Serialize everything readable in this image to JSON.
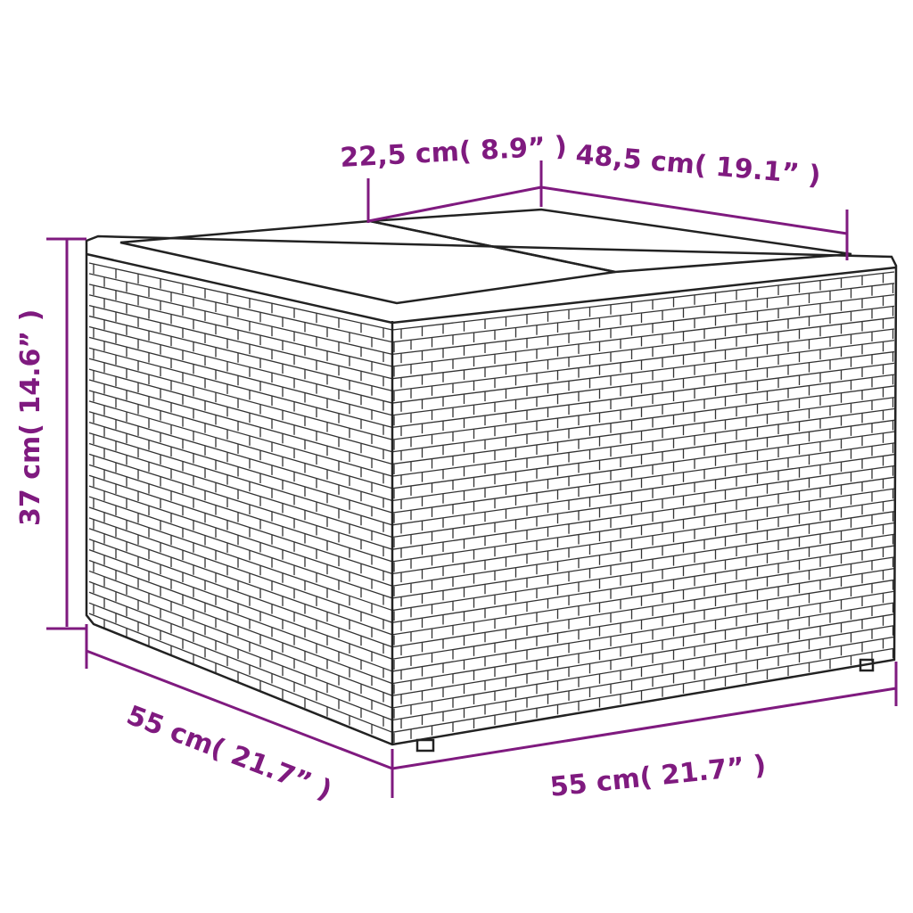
{
  "diagram": {
    "subject": "",
    "colors": {
      "dimension": "#7f1a7f",
      "outline": "#222222",
      "background": "#ffffff"
    },
    "dimensions": {
      "top_depth": "22,5 cm( 8.9”  )",
      "top_width": "48,5 cm( 19.1”  )",
      "height": "37 cm( 14.6”  )",
      "depth": "55 cm( 21.7”  )",
      "width": "55 cm( 21.7”  )"
    }
  }
}
